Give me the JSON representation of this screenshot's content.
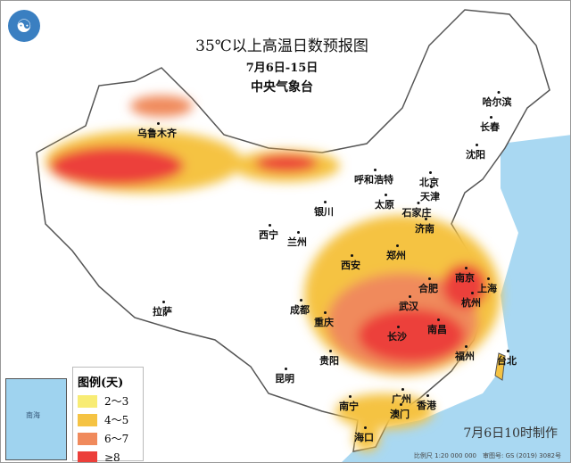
{
  "title": "35℃以上高温日数预报图",
  "date_range": "7月6日-15日",
  "agency": "中央气象台",
  "logo_icon": "cma-logo",
  "legend": {
    "title": "图例(天)",
    "items": [
      {
        "label": "2～3",
        "color": "#f8ec74"
      },
      {
        "label": "4～5",
        "color": "#f5c343"
      },
      {
        "label": "6～7",
        "color": "#f08a5c"
      },
      {
        "label": "≥8",
        "color": "#ec3f3a"
      }
    ]
  },
  "made_time": "7月6日10时制作",
  "footer": "比例尺 1:20 000 000　审图号: GS (2019) 3082号",
  "inset_label": "南海",
  "cities": [
    "哈尔滨",
    "长春",
    "沈阳",
    "乌鲁木齐",
    "呼和浩特",
    "北京",
    "天津",
    "太原",
    "石家庄",
    "济南",
    "银川",
    "西宁",
    "兰州",
    "郑州",
    "西安",
    "南京",
    "合肥",
    "上海",
    "杭州",
    "成都",
    "武汉",
    "重庆",
    "长沙",
    "南昌",
    "福州",
    "台北",
    "拉萨",
    "贵阳",
    "昆明",
    "南宁",
    "广州",
    "香港",
    "澳门",
    "海口"
  ]
}
